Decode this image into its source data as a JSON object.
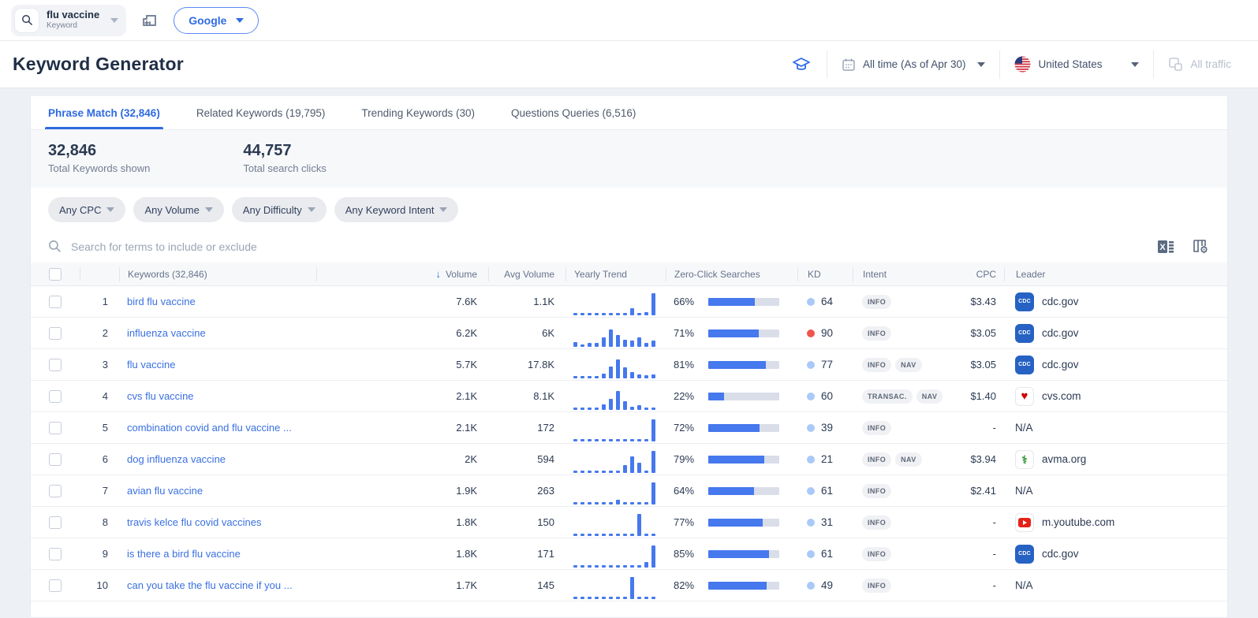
{
  "colors": {
    "accent": "#4678ee",
    "link": "#3a70e2",
    "kd_blue": "#a9c9f8",
    "kd_red": "#f0544d"
  },
  "topbar": {
    "search_chip": {
      "keyword": "flu vaccine",
      "type_label": "Keyword"
    },
    "engine_label": "Google"
  },
  "header": {
    "title": "Keyword Generator",
    "date_range": "All time (As of Apr 30)",
    "country": "United States",
    "traffic": "All traffic"
  },
  "tabs": [
    {
      "label": "Phrase Match (32,846)",
      "active": true
    },
    {
      "label": "Related Keywords (19,795)",
      "active": false
    },
    {
      "label": "Trending Keywords (30)",
      "active": false
    },
    {
      "label": "Questions Queries (6,516)",
      "active": false
    }
  ],
  "stats": [
    {
      "value": "32,846",
      "label": "Total Keywords shown"
    },
    {
      "value": "44,757",
      "label": "Total search clicks"
    }
  ],
  "filters": [
    "Any CPC",
    "Any Volume",
    "Any Difficulty",
    "Any Keyword Intent"
  ],
  "search": {
    "placeholder": "Search for terms to include or exclude"
  },
  "table": {
    "columns": {
      "keywords": "Keywords (32,846)",
      "volume": "Volume",
      "avg_volume": "Avg Volume",
      "yearly_trend": "Yearly Trend",
      "zero_click": "Zero-Click Searches",
      "kd": "KD",
      "intent": "Intent",
      "cpc": "CPC",
      "leader": "Leader"
    },
    "rows": [
      {
        "rank": 1,
        "keyword": "bird flu vaccine",
        "volume": "7.6K",
        "avg_volume": "1.1K",
        "trend": [
          0.07,
          0.07,
          0.07,
          0.07,
          0.07,
          0.07,
          0.07,
          0.07,
          0.32,
          0.07,
          0.15,
          1.0
        ],
        "zero_click_pct": 66,
        "kd": 64,
        "kd_level": "blue",
        "intents": [
          "INFO"
        ],
        "cpc": "$3.43",
        "leader": "cdc.gov",
        "leader_icon": "cdc"
      },
      {
        "rank": 2,
        "keyword": "influenza vaccine",
        "volume": "6.2K",
        "avg_volume": "6K",
        "trend": [
          0.22,
          0.1,
          0.18,
          0.18,
          0.42,
          0.78,
          0.52,
          0.33,
          0.27,
          0.42,
          0.17,
          0.3
        ],
        "zero_click_pct": 71,
        "kd": 90,
        "kd_level": "red",
        "intents": [
          "INFO"
        ],
        "cpc": "$3.05",
        "leader": "cdc.gov",
        "leader_icon": "cdc"
      },
      {
        "rank": 3,
        "keyword": "flu vaccine",
        "volume": "5.7K",
        "avg_volume": "17.8K",
        "trend": [
          0.07,
          0.1,
          0.1,
          0.12,
          0.22,
          0.55,
          0.85,
          0.5,
          0.3,
          0.18,
          0.15,
          0.18
        ],
        "zero_click_pct": 81,
        "kd": 77,
        "kd_level": "blue",
        "intents": [
          "INFO",
          "NAV"
        ],
        "cpc": "$3.05",
        "leader": "cdc.gov",
        "leader_icon": "cdc"
      },
      {
        "rank": 4,
        "keyword": "cvs flu vaccine",
        "volume": "2.1K",
        "avg_volume": "8.1K",
        "trend": [
          0.07,
          0.07,
          0.1,
          0.1,
          0.25,
          0.5,
          0.85,
          0.4,
          0.15,
          0.2,
          0.07,
          0.07
        ],
        "zero_click_pct": 22,
        "kd": 60,
        "kd_level": "blue",
        "intents": [
          "TRANSAC.",
          "NAV"
        ],
        "cpc": "$1.40",
        "leader": "cvs.com",
        "leader_icon": "cvs"
      },
      {
        "rank": 5,
        "keyword": "combination covid and flu vaccine ...",
        "volume": "2.1K",
        "avg_volume": "172",
        "trend": [
          0.07,
          0.07,
          0.07,
          0.07,
          0.07,
          0.07,
          0.07,
          0.07,
          0.07,
          0.07,
          0.07,
          1.0
        ],
        "zero_click_pct": 72,
        "kd": 39,
        "kd_level": "blue",
        "intents": [
          "INFO"
        ],
        "cpc": "-",
        "leader": "N/A",
        "leader_icon": null
      },
      {
        "rank": 6,
        "keyword": "dog influenza vaccine",
        "volume": "2K",
        "avg_volume": "594",
        "trend": [
          0.07,
          0.07,
          0.07,
          0.07,
          0.07,
          0.07,
          0.07,
          0.35,
          0.75,
          0.45,
          0.1,
          1.0
        ],
        "zero_click_pct": 79,
        "kd": 21,
        "kd_level": "blue",
        "intents": [
          "INFO",
          "NAV"
        ],
        "cpc": "$3.94",
        "leader": "avma.org",
        "leader_icon": "avma"
      },
      {
        "rank": 7,
        "keyword": "avian flu vaccine",
        "volume": "1.9K",
        "avg_volume": "263",
        "trend": [
          0.07,
          0.07,
          0.07,
          0.07,
          0.07,
          0.07,
          0.2,
          0.07,
          0.07,
          0.07,
          0.07,
          1.0
        ],
        "zero_click_pct": 64,
        "kd": 61,
        "kd_level": "blue",
        "intents": [
          "INFO"
        ],
        "cpc": "$2.41",
        "leader": "N/A",
        "leader_icon": null
      },
      {
        "rank": 8,
        "keyword": "travis kelce flu covid vaccines",
        "volume": "1.8K",
        "avg_volume": "150",
        "trend": [
          0.07,
          0.07,
          0.07,
          0.07,
          0.07,
          0.07,
          0.07,
          0.07,
          0.07,
          1.0,
          0.07,
          0.07
        ],
        "zero_click_pct": 77,
        "kd": 31,
        "kd_level": "blue",
        "intents": [
          "INFO"
        ],
        "cpc": "-",
        "leader": "m.youtube.com",
        "leader_icon": "youtube"
      },
      {
        "rank": 9,
        "keyword": "is there a bird flu vaccine",
        "volume": "1.8K",
        "avg_volume": "171",
        "trend": [
          0.07,
          0.07,
          0.07,
          0.07,
          0.07,
          0.07,
          0.07,
          0.07,
          0.07,
          0.07,
          0.25,
          1.0
        ],
        "zero_click_pct": 85,
        "kd": 61,
        "kd_level": "blue",
        "intents": [
          "INFO"
        ],
        "cpc": "-",
        "leader": "cdc.gov",
        "leader_icon": "cdc"
      },
      {
        "rank": 10,
        "keyword": "can you take the flu vaccine if you ...",
        "volume": "1.7K",
        "avg_volume": "145",
        "trend": [
          0.07,
          0.07,
          0.07,
          0.07,
          0.07,
          0.07,
          0.07,
          0.07,
          1.0,
          0.07,
          0.07,
          0.07
        ],
        "zero_click_pct": 82,
        "kd": 49,
        "kd_level": "blue",
        "intents": [
          "INFO"
        ],
        "cpc": "-",
        "leader": "N/A",
        "leader_icon": null
      }
    ]
  }
}
